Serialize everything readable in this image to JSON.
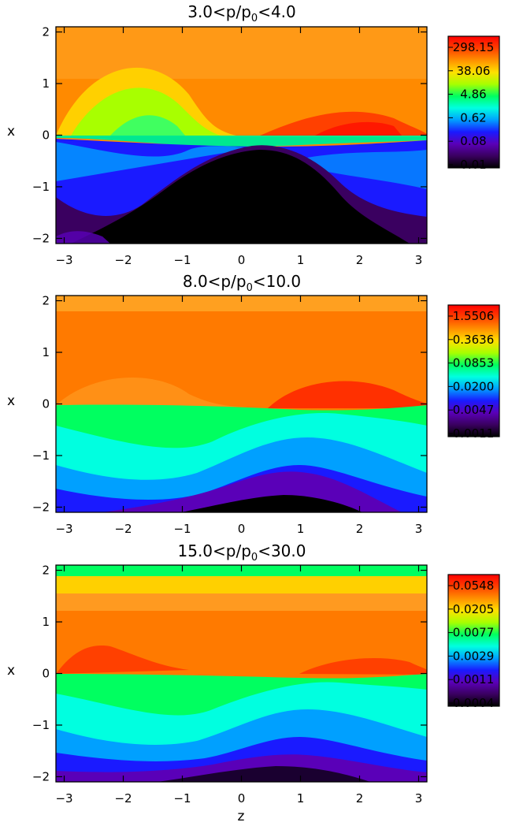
{
  "chart_data": [
    {
      "type": "heatmap",
      "title_parts": {
        "pre": "3.0<p/p",
        "sub": "0",
        "post": "<4.0"
      },
      "xlabel": "",
      "ylabel": "x",
      "xlim": [
        -3.14,
        3.14
      ],
      "ylim": [
        -2.1,
        2.1
      ],
      "xticks": [
        -3,
        -2,
        -1,
        0,
        1,
        2,
        3
      ],
      "yticks": [
        -2,
        -1,
        0,
        1,
        2
      ],
      "colorbar_scale": "log",
      "colorbar_labels": [
        "298.15",
        "38.06",
        "4.86",
        "0.62",
        "0.08",
        "0.01"
      ]
    },
    {
      "type": "heatmap",
      "title_parts": {
        "pre": "8.0<p/p",
        "sub": "0",
        "post": "<10.0"
      },
      "xlabel": "",
      "ylabel": "x",
      "xlim": [
        -3.14,
        3.14
      ],
      "ylim": [
        -2.1,
        2.1
      ],
      "xticks": [
        -3,
        -2,
        -1,
        0,
        1,
        2,
        3
      ],
      "yticks": [
        -2,
        -1,
        0,
        1,
        2
      ],
      "colorbar_scale": "log",
      "colorbar_labels": [
        "1.5506",
        "0.3636",
        "0.0853",
        "0.0200",
        "0.0047",
        "0.0011"
      ]
    },
    {
      "type": "heatmap",
      "title_parts": {
        "pre": "15.0<p/p",
        "sub": "0",
        "post": "<30.0"
      },
      "xlabel": "z",
      "ylabel": "x",
      "xlim": [
        -3.14,
        3.14
      ],
      "ylim": [
        -2.1,
        2.1
      ],
      "xticks": [
        -3,
        -2,
        -1,
        0,
        1,
        2,
        3
      ],
      "yticks": [
        -2,
        -1,
        0,
        1,
        2
      ],
      "colorbar_scale": "log",
      "colorbar_labels": [
        "0.0548",
        "0.0205",
        "0.0077",
        "0.0029",
        "0.0011",
        "0.0004"
      ]
    }
  ],
  "colormap": [
    "#000000",
    "#3a0060",
    "#5a00b8",
    "#1a1aff",
    "#00a0ff",
    "#00ffe0",
    "#00ff60",
    "#a8ff00",
    "#ffe000",
    "#ff9000",
    "#ff4000",
    "#ff0000"
  ]
}
